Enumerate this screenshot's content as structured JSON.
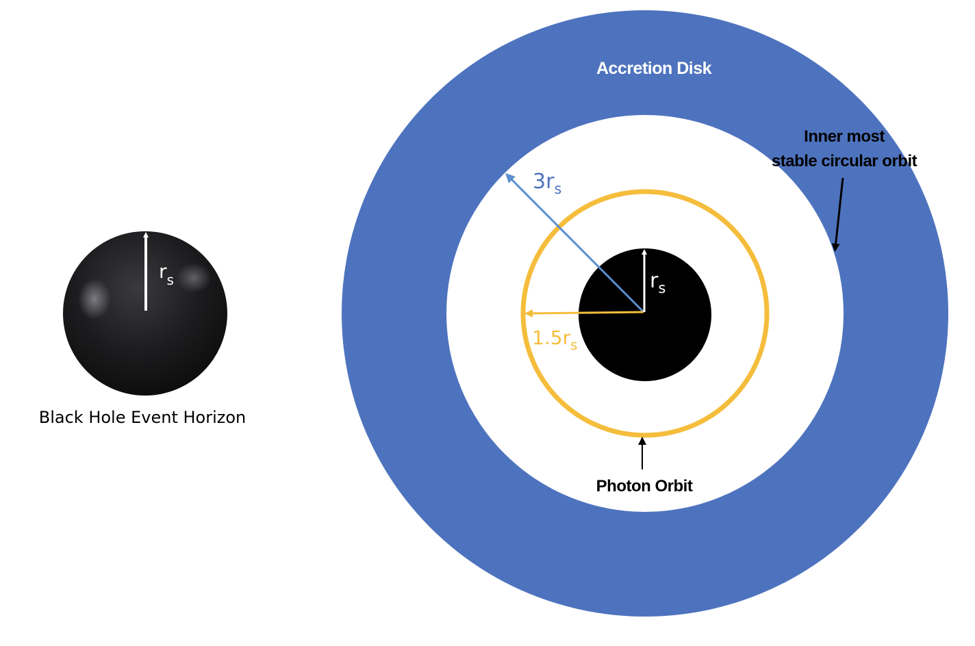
{
  "left_figure": {
    "caption": "Black Hole Event Horizon",
    "radius_label": {
      "main": "r",
      "sub": "s"
    }
  },
  "right_figure": {
    "accretion_disk_label": "Accretion Disk",
    "isco_label_line1": "Inner most",
    "isco_label_line2": "stable circular orbit",
    "photon_orbit_label": "Photon Orbit",
    "horizon_radius_label": {
      "main": "r",
      "sub": "s"
    },
    "photon_radius_label": {
      "main": "1.5r",
      "sub": "s"
    },
    "isco_radius_label": {
      "main": "3r",
      "sub": "s"
    }
  },
  "colors": {
    "accretion_disk": "#4e73be",
    "photon_orbit": "#f5bd3c",
    "isco_arrow": "#5b8fcf",
    "isco_text": "#4f74bd",
    "black_hole": "#000000",
    "background": "#ffffff"
  }
}
